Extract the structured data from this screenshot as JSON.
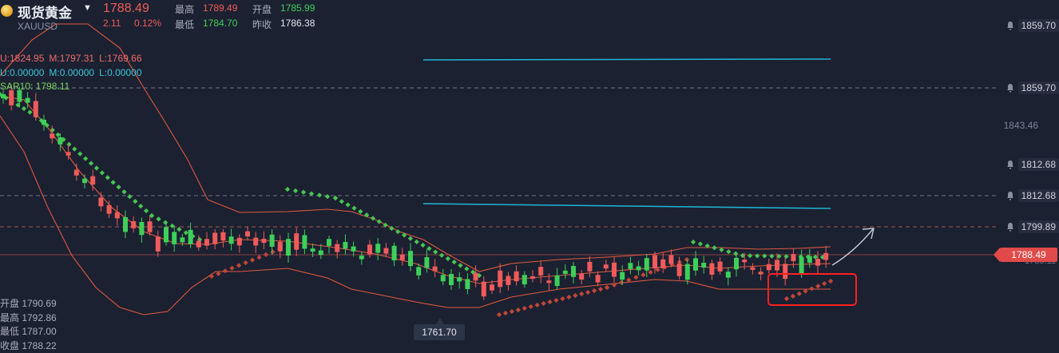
{
  "header": {
    "title": "现货黄金",
    "symbol": "XAUUSD",
    "price": "1788.49",
    "change": "2.11",
    "change_pct": "0.12%",
    "stats": {
      "high_label": "最高",
      "high": "1789.49",
      "open_label": "开盘",
      "open": "1785.99",
      "low_label": "最低",
      "low": "1784.70",
      "prev_close_label": "昨收",
      "prev_close": "1786.38"
    }
  },
  "indicators": {
    "boll_u": "U:1824.95",
    "boll_m": "M:1797.31",
    "boll_l": "L:1769.66",
    "line2_u": "U:0.00000",
    "line2_m": "M:0.00000",
    "line2_l": "L:0.00000",
    "sar": "SAR10: 1798.11"
  },
  "ohlc_panel": {
    "open": "开盘 1790.69",
    "high": "最高 1792.86",
    "low": "最低 1787.00",
    "close": "收盘 1788.22"
  },
  "price_axis": {
    "alerts": [
      "1859.70",
      "1859.70",
      "1812.68",
      "1812.68",
      "1799.89"
    ],
    "mid_label": "1843.46",
    "current_price": "1788.49",
    "partial_label": "1785.11"
  },
  "low_marker": "1761.70",
  "colors": {
    "background": "#1b2131",
    "up": "#3ecf5a",
    "down": "#ef5b5b",
    "boll": "#e0573f",
    "sar_up": "#47c451",
    "sar_down": "#c0463a",
    "horizontal_line": "#1fb7d4",
    "highlight_box": "#ff1f1f"
  },
  "icons": [
    "gold-coin-icon",
    "dropdown-caret-icon",
    "bell-icon",
    "trend-arrow-icon"
  ]
}
